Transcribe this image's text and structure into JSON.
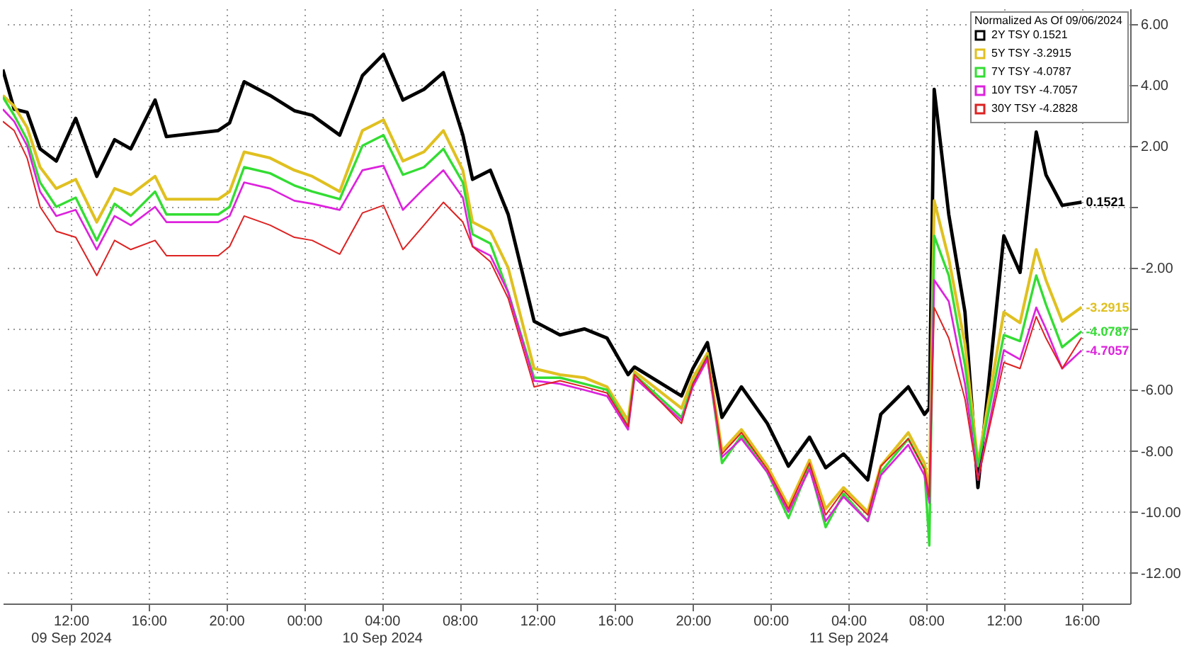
{
  "chart_data": {
    "type": "line",
    "legend_title": "Normalized As Of 09/06/2024",
    "legend": "top right",
    "grid": true,
    "x": [
      "2024-09-09T08:30",
      "2024-09-09T09:05",
      "2024-09-09T09:45",
      "2024-09-09T10:25",
      "2024-09-09T11:15",
      "2024-09-09T12:15",
      "2024-09-09T13:20",
      "2024-09-09T14:15",
      "2024-09-09T15:05",
      "2024-09-09T16:20",
      "2024-09-09T16:55",
      "2024-09-09T19:35",
      "2024-09-09T20:10",
      "2024-09-09T20:55",
      "2024-09-09T22:15",
      "2024-09-09T23:30",
      "2024-09-10T00:25",
      "2024-09-10T01:50",
      "2024-09-10T03:00",
      "2024-09-10T04:05",
      "2024-09-10T05:05",
      "2024-09-10T06:10",
      "2024-09-10T07:10",
      "2024-09-10T08:10",
      "2024-09-10T08:40",
      "2024-09-10T09:35",
      "2024-09-10T10:30",
      "2024-09-10T11:50",
      "2024-09-10T13:10",
      "2024-09-10T14:25",
      "2024-09-10T15:35",
      "2024-09-10T16:40",
      "2024-09-10T17:00",
      "2024-09-10T19:25",
      "2024-09-10T20:00",
      "2024-09-10T20:45",
      "2024-09-10T21:30",
      "2024-09-10T22:30",
      "2024-09-10T23:50",
      "2024-09-11T00:55",
      "2024-09-11T02:00",
      "2024-09-11T02:50",
      "2024-09-11T03:45",
      "2024-09-11T05:00",
      "2024-09-11T05:40",
      "2024-09-11T07:05",
      "2024-09-11T07:55",
      "2024-09-11T08:10",
      "2024-09-11T08:25",
      "2024-09-11T09:10",
      "2024-09-11T10:00",
      "2024-09-11T10:40",
      "2024-09-11T12:00",
      "2024-09-11T12:50",
      "2024-09-11T13:40",
      "2024-09-11T14:10",
      "2024-09-11T15:00",
      "2024-09-11T16:00"
    ],
    "series": [
      {
        "name": "2Y TSY 0.1521",
        "color": "#000000",
        "values": [
          4.5,
          3.2,
          3.1,
          1.9,
          1.5,
          2.9,
          1.0,
          2.2,
          1.9,
          3.5,
          2.3,
          2.5,
          2.75,
          4.1,
          3.65,
          3.15,
          3.0,
          2.35,
          4.3,
          5.0,
          3.5,
          3.85,
          4.4,
          2.35,
          0.9,
          1.2,
          -0.25,
          -3.75,
          -4.2,
          -4.0,
          -4.3,
          -5.5,
          -5.25,
          -6.2,
          -5.3,
          -4.45,
          -6.9,
          -5.9,
          -7.1,
          -8.5,
          -7.55,
          -8.55,
          -8.1,
          -8.95,
          -6.8,
          -5.9,
          -6.8,
          -6.6,
          3.85,
          -0.25,
          -3.45,
          -9.2,
          -0.95,
          -2.15,
          2.45,
          1.05,
          0.05,
          0.1521
        ]
      },
      {
        "name": "5Y TSY -3.2915",
        "color": "#e0c020",
        "values": [
          3.65,
          3.3,
          2.6,
          1.3,
          0.6,
          0.9,
          -0.5,
          0.6,
          0.4,
          1.0,
          0.25,
          0.25,
          0.5,
          1.8,
          1.6,
          1.2,
          1.0,
          0.5,
          2.5,
          2.85,
          1.5,
          1.8,
          2.5,
          1.2,
          -0.5,
          -0.8,
          -2.0,
          -5.3,
          -5.5,
          -5.6,
          -5.9,
          -7.0,
          -5.4,
          -6.6,
          -5.6,
          -4.8,
          -8.0,
          -7.3,
          -8.5,
          -9.8,
          -8.3,
          -9.9,
          -9.2,
          -10.0,
          -8.5,
          -7.4,
          -8.4,
          -9.3,
          0.2,
          -1.7,
          -4.5,
          -8.4,
          -3.45,
          -3.8,
          -1.4,
          -2.4,
          -3.75,
          -3.2915
        ]
      },
      {
        "name": "7Y TSY -4.0787",
        "color": "#33dd33",
        "values": [
          3.6,
          3.0,
          2.2,
          0.8,
          0.0,
          0.3,
          -1.1,
          0.1,
          -0.3,
          0.5,
          -0.25,
          -0.25,
          0.0,
          1.3,
          1.1,
          0.7,
          0.5,
          0.25,
          2.0,
          2.35,
          1.05,
          1.3,
          1.9,
          0.8,
          -0.9,
          -1.2,
          -2.8,
          -5.6,
          -5.6,
          -5.8,
          -6.0,
          -7.2,
          -5.5,
          -6.9,
          -5.8,
          -4.9,
          -8.4,
          -7.5,
          -8.7,
          -10.2,
          -8.5,
          -10.5,
          -9.4,
          -10.3,
          -8.7,
          -7.6,
          -8.6,
          -11.1,
          -0.95,
          -2.25,
          -5.2,
          -8.5,
          -4.2,
          -4.4,
          -2.25,
          -3.2,
          -4.6,
          -4.0787
        ]
      },
      {
        "name": "10Y TSY -4.7057",
        "color": "#dd22dd",
        "values": [
          3.2,
          2.8,
          2.0,
          0.5,
          -0.3,
          -0.1,
          -1.4,
          -0.3,
          -0.6,
          0.0,
          -0.5,
          -0.5,
          -0.3,
          0.8,
          0.6,
          0.2,
          0.1,
          -0.1,
          1.2,
          1.35,
          -0.1,
          0.6,
          1.2,
          0.3,
          -1.3,
          -1.6,
          -2.8,
          -5.7,
          -5.8,
          -6.0,
          -6.2,
          -7.3,
          -5.6,
          -7.0,
          -5.9,
          -5.0,
          -8.2,
          -7.6,
          -8.7,
          -10.0,
          -8.6,
          -10.3,
          -9.5,
          -10.3,
          -8.8,
          -7.8,
          -8.8,
          -9.7,
          -2.4,
          -3.1,
          -5.8,
          -8.95,
          -4.7,
          -5.0,
          -3.3,
          -4.0,
          -5.3,
          -4.7057
        ]
      },
      {
        "name": "30Y TSY -4.2828",
        "color": "#dd2222",
        "values": [
          2.8,
          2.5,
          1.6,
          0.0,
          -0.8,
          -1.0,
          -2.25,
          -1.1,
          -1.4,
          -1.1,
          -1.6,
          -1.6,
          -1.3,
          -0.3,
          -0.6,
          -1.0,
          -1.1,
          -1.55,
          -0.2,
          0.05,
          -1.4,
          -0.6,
          0.15,
          -0.5,
          -1.3,
          -1.8,
          -3.0,
          -5.9,
          -5.7,
          -5.9,
          -6.1,
          -7.2,
          -5.5,
          -7.1,
          -5.8,
          -4.9,
          -8.1,
          -7.4,
          -8.6,
          -9.9,
          -8.4,
          -10.1,
          -9.3,
          -10.1,
          -8.5,
          -7.6,
          -8.6,
          -9.5,
          -3.3,
          -4.3,
          -6.3,
          -8.95,
          -5.1,
          -5.3,
          -3.6,
          -4.3,
          -5.3,
          -4.2828
        ]
      }
    ],
    "xlim": [
      "2024-09-09T08:30",
      "2024-09-11T18:30"
    ],
    "xticks": [
      {
        "value": "2024-09-09T12:00",
        "label": "12:00\n09 Sep 2024"
      },
      {
        "value": "2024-09-09T16:00",
        "label": "16:00"
      },
      {
        "value": "2024-09-09T20:00",
        "label": "20:00"
      },
      {
        "value": "2024-09-10T00:00",
        "label": "00:00"
      },
      {
        "value": "2024-09-10T04:00",
        "label": "04:00\n10 Sep 2024"
      },
      {
        "value": "2024-09-10T08:00",
        "label": "08:00"
      },
      {
        "value": "2024-09-10T12:00",
        "label": "12:00"
      },
      {
        "value": "2024-09-10T16:00",
        "label": "16:00"
      },
      {
        "value": "2024-09-10T20:00",
        "label": "20:00"
      },
      {
        "value": "2024-09-11T00:00",
        "label": "00:00"
      },
      {
        "value": "2024-09-11T04:00",
        "label": "04:00\n11 Sep 2024"
      },
      {
        "value": "2024-09-11T08:00",
        "label": "08:00"
      },
      {
        "value": "2024-09-11T12:00",
        "label": "12:00"
      },
      {
        "value": "2024-09-11T16:00",
        "label": "16:00"
      }
    ],
    "ylim": [
      -13,
      6.5
    ],
    "yticks": [
      {
        "value": -12,
        "label": "-12.00"
      },
      {
        "value": -10,
        "label": "-10.00"
      },
      {
        "value": -8,
        "label": "-8.00"
      },
      {
        "value": -6,
        "label": "-6.00"
      },
      {
        "value": -4,
        "label": null
      },
      {
        "value": -2,
        "label": "-2.00"
      },
      {
        "value": 0,
        "label": null
      },
      {
        "value": 2,
        "label": "2.00"
      },
      {
        "value": 4,
        "label": "4.00"
      },
      {
        "value": 6,
        "label": "6.00"
      }
    ],
    "annotations": [
      {
        "text": "0.1521",
        "x": "2024-09-11T16:00",
        "y": 0.1521
      },
      {
        "text": "-3.2915",
        "x": "2024-09-11T16:00",
        "y": -3.2915
      },
      {
        "text": "-4.0787",
        "x": "2024-09-11T16:00",
        "y": -4.0787
      },
      {
        "text": "-4.7057",
        "x": "2024-09-11T16:00",
        "y": -4.7057
      }
    ]
  }
}
